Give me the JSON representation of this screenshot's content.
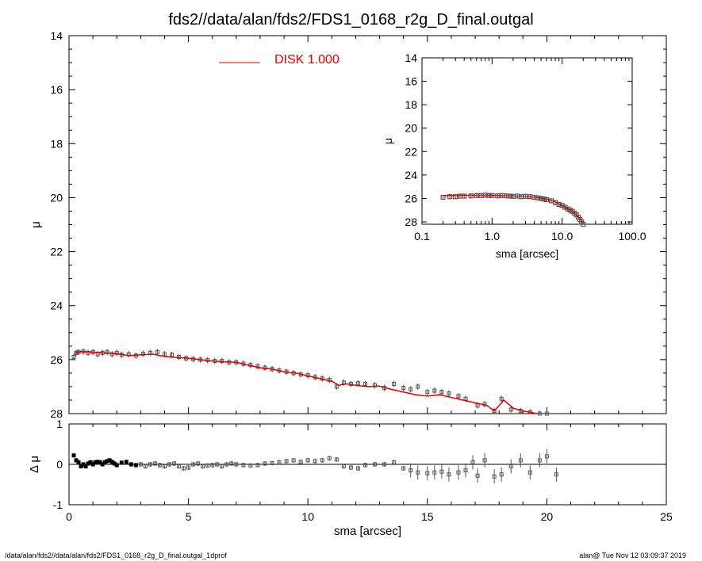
{
  "title": "fds2//data/alan/fds2/FDS1_0168_r2g_D_final.outgal",
  "footer_left": "/data/alan/fds2//data/alan/fds2/FDS1_0168_r2g_D_final.outgal_1dprof",
  "footer_right": "alan@  Tue Nov 12 03:09:37 2019",
  "colors": {
    "model": "#e00000",
    "data": "#555555",
    "axis": "#000000"
  },
  "chart_data": [
    {
      "type": "scatter",
      "role": "main profile",
      "xlabel": "sma [arcsec]",
      "ylabel": "μ",
      "xlim": [
        0,
        25
      ],
      "ylim": [
        28,
        14
      ],
      "xticks": [
        0,
        5,
        10,
        15,
        20,
        25
      ],
      "yticks": [
        14,
        16,
        18,
        20,
        22,
        24,
        26,
        28
      ],
      "legend": {
        "label": "DISK  1.000",
        "placement": "top-center"
      },
      "series": [
        {
          "name": "DISK  1.000",
          "kind": "line",
          "x": [
            0.25,
            0.5,
            1.0,
            1.5,
            2.0,
            2.5,
            3.0,
            3.5,
            4.0,
            4.5,
            5.0,
            5.5,
            6.0,
            6.5,
            7.0,
            7.5,
            8.0,
            8.5,
            9.0,
            9.5,
            10.0,
            10.5,
            11.0,
            11.3,
            11.6,
            12.0,
            12.5,
            13.0,
            13.5,
            14.0,
            14.5,
            15.0,
            15.5,
            16.0,
            16.5,
            17.0,
            17.5,
            17.8,
            18.2,
            18.6,
            19.0,
            19.6
          ],
          "y": [
            25.75,
            25.7,
            25.72,
            25.75,
            25.78,
            25.85,
            25.82,
            25.8,
            25.88,
            25.92,
            25.95,
            26.0,
            26.05,
            26.08,
            26.1,
            26.2,
            26.3,
            26.35,
            26.45,
            26.5,
            26.6,
            26.7,
            26.8,
            26.95,
            26.9,
            26.95,
            27.0,
            26.98,
            27.1,
            27.2,
            27.3,
            27.35,
            27.3,
            27.4,
            27.5,
            27.6,
            27.7,
            27.9,
            27.5,
            27.8,
            27.9,
            28.0
          ]
        },
        {
          "name": "",
          "kind": "points",
          "x": [
            0.2,
            0.3,
            0.4,
            0.6,
            0.8,
            1.0,
            1.2,
            1.4,
            1.6,
            1.8,
            2.0,
            2.2,
            2.5,
            2.8,
            3.1,
            3.4,
            3.7,
            4.0,
            4.3,
            4.6,
            4.9,
            5.2,
            5.5,
            5.8,
            6.1,
            6.4,
            6.7,
            7.0,
            7.3,
            7.6,
            7.9,
            8.2,
            8.5,
            8.8,
            9.1,
            9.4,
            9.7,
            10.0,
            10.3,
            10.6,
            10.9,
            11.2,
            11.5,
            11.8,
            12.1,
            12.4,
            12.8,
            13.2,
            13.6,
            14.0,
            14.3,
            14.6,
            15.0,
            15.3,
            15.6,
            15.9,
            16.3,
            16.6,
            17.1,
            17.4,
            17.8,
            18.1,
            18.5,
            18.9,
            19.3,
            19.7,
            20.0
          ],
          "y": [
            25.9,
            25.75,
            25.72,
            25.7,
            25.75,
            25.72,
            25.8,
            25.75,
            25.72,
            25.8,
            25.75,
            25.82,
            25.8,
            25.85,
            25.78,
            25.75,
            25.72,
            25.8,
            25.82,
            25.9,
            25.95,
            25.98,
            26.0,
            26.02,
            26.05,
            26.05,
            26.1,
            26.1,
            26.15,
            26.2,
            26.25,
            26.3,
            26.35,
            26.4,
            26.45,
            26.5,
            26.55,
            26.58,
            26.65,
            26.7,
            26.75,
            27.0,
            26.85,
            26.9,
            26.88,
            26.9,
            26.95,
            27.05,
            26.9,
            27.05,
            27.1,
            27.0,
            27.2,
            27.15,
            27.2,
            27.25,
            27.35,
            27.45,
            27.7,
            27.65,
            27.9,
            27.45,
            27.85,
            27.9,
            27.95,
            28.0,
            28.0
          ]
        }
      ]
    },
    {
      "type": "scatter",
      "role": "residuals",
      "xlabel": "sma [arcsec]",
      "ylabel": "Δ μ",
      "xlim": [
        0,
        25
      ],
      "ylim": [
        -1,
        1
      ],
      "xticks": [
        0,
        5,
        10,
        15,
        20,
        25
      ],
      "yticks": [
        1,
        0,
        -1
      ],
      "zero_line": true,
      "series": [
        {
          "name": "",
          "x": [
            0.2,
            0.3,
            0.4,
            0.5,
            0.6,
            0.7,
            0.8,
            0.9,
            1.0,
            1.1,
            1.2,
            1.3,
            1.4,
            1.5,
            1.6,
            1.7,
            1.8,
            1.9,
            2.0,
            2.2,
            2.4,
            2.6,
            2.8,
            3.0,
            3.2,
            3.4,
            3.6,
            3.8,
            4.0,
            4.2,
            4.4,
            4.6,
            4.8,
            5.0,
            5.2,
            5.4,
            5.6,
            5.8,
            6.0,
            6.2,
            6.4,
            6.6,
            6.8,
            7.0,
            7.3,
            7.6,
            7.9,
            8.2,
            8.5,
            8.8,
            9.1,
            9.4,
            9.7,
            10.0,
            10.3,
            10.6,
            10.9,
            11.2,
            11.5,
            11.8,
            12.1,
            12.4,
            12.8,
            13.2,
            13.6,
            14.0,
            14.3,
            14.6,
            15.0,
            15.3,
            15.6,
            15.9,
            16.3,
            16.6,
            16.9,
            17.1,
            17.4,
            17.8,
            18.1,
            18.5,
            18.9,
            19.3,
            19.7,
            20.0,
            20.4
          ],
          "y": [
            0.22,
            0.1,
            0.05,
            -0.05,
            0.0,
            -0.05,
            0.02,
            0.05,
            0.0,
            0.05,
            0.06,
            0.05,
            0.0,
            0.05,
            0.08,
            0.1,
            0.06,
            0.02,
            -0.02,
            0.04,
            0.06,
            0.0,
            -0.02,
            0.0,
            -0.05,
            0.0,
            0.02,
            -0.02,
            -0.05,
            0.0,
            0.02,
            -0.05,
            -0.1,
            -0.08,
            0.0,
            0.02,
            -0.05,
            -0.03,
            -0.02,
            0.0,
            -0.05,
            0.0,
            0.02,
            0.0,
            -0.02,
            -0.03,
            -0.02,
            0.02,
            0.03,
            0.05,
            0.08,
            0.1,
            0.06,
            0.1,
            0.08,
            0.1,
            0.15,
            0.12,
            -0.05,
            -0.08,
            -0.1,
            -0.02,
            0.0,
            0.0,
            0.05,
            -0.1,
            -0.15,
            -0.2,
            -0.22,
            -0.2,
            -0.18,
            -0.25,
            -0.2,
            -0.15,
            0.05,
            -0.28,
            0.1,
            -0.3,
            -0.25,
            -0.05,
            0.1,
            -0.2,
            0.1,
            0.2,
            -0.25
          ]
        }
      ]
    },
    {
      "type": "scatter",
      "role": "inset (log sma)",
      "xlabel": "sma [arcsec]",
      "ylabel": "μ",
      "xscale": "log",
      "xlim": [
        0.1,
        100
      ],
      "ylim": [
        28.2,
        14
      ],
      "xticks": [
        0.1,
        1.0,
        10.0,
        100.0
      ],
      "xticklabels": [
        "0.1",
        "1.0",
        "10.0",
        "100.0"
      ],
      "yticks": [
        14,
        16,
        18,
        20,
        22,
        24,
        26,
        28
      ],
      "series": [
        {
          "name": "",
          "kind": "points",
          "x": [
            0.2,
            0.25,
            0.3,
            0.35,
            0.4,
            0.5,
            0.6,
            0.7,
            0.8,
            0.9,
            1.0,
            1.2,
            1.4,
            1.6,
            1.8,
            2.0,
            2.3,
            2.6,
            3.0,
            3.5,
            4.0,
            4.5,
            5.0,
            5.5,
            6.0,
            7.0,
            8.0,
            9.0,
            10.0,
            11.0,
            12.0,
            13.0,
            14.0,
            15.0,
            16.0,
            17.0,
            18.0,
            19.0,
            20.0
          ],
          "y": [
            25.9,
            25.85,
            25.85,
            25.8,
            25.8,
            25.78,
            25.75,
            25.75,
            25.72,
            25.75,
            25.75,
            25.78,
            25.75,
            25.78,
            25.8,
            25.82,
            25.8,
            25.85,
            25.82,
            25.85,
            25.9,
            25.95,
            26.0,
            26.05,
            26.1,
            26.2,
            26.35,
            26.5,
            26.6,
            26.75,
            26.9,
            27.0,
            27.1,
            27.25,
            27.4,
            27.6,
            27.8,
            28.0,
            28.2
          ]
        },
        {
          "name": "",
          "kind": "line",
          "x": [
            0.2,
            0.5,
            1.0,
            2.0,
            3.0,
            4.0,
            5.0,
            6.0,
            8.0,
            10.0,
            12.0,
            14.0,
            16.0,
            18.0,
            19.6
          ],
          "y": [
            25.75,
            25.72,
            25.72,
            25.78,
            25.82,
            25.9,
            25.95,
            26.05,
            26.3,
            26.6,
            26.9,
            27.1,
            27.4,
            27.7,
            28.0
          ]
        }
      ]
    }
  ]
}
